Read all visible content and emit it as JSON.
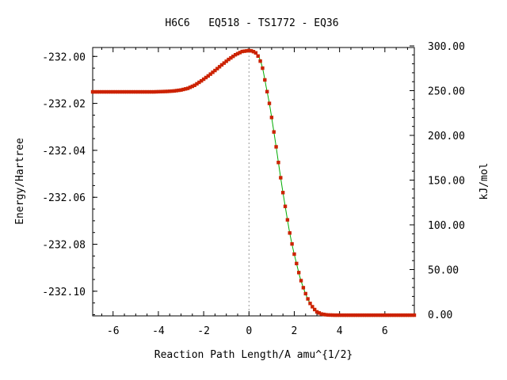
{
  "chart_data": {
    "type": "line",
    "title": "H6C6   EQ518 - TS1772 - EQ36",
    "xlabel": "Reaction Path Length/A amu^{1/2}",
    "ylabel": "Energy/Hartree",
    "y2label": "kJ/mol",
    "xlim": [
      -6.9,
      7.3
    ],
    "ylim": [
      -232.1105,
      -231.9962
    ],
    "y2lim": [
      0,
      300
    ],
    "xticks": [
      -6,
      -4,
      -2,
      0,
      2,
      4,
      6
    ],
    "xtick_labels": [
      "-6",
      "-4",
      "-2",
      "0",
      "2",
      "4",
      "6"
    ],
    "yticks": [
      -232.0,
      -232.02,
      -232.04,
      -232.06,
      -232.08,
      -232.1
    ],
    "ytick_labels": [
      "-232.00",
      "-232.02",
      "-232.04",
      "-232.06",
      "-232.08",
      "-232.10"
    ],
    "y2ticks": [
      300,
      250,
      200,
      150,
      100,
      50,
      0
    ],
    "y2tick_labels": [
      "300.00",
      "250.00",
      "200.00",
      "150.00",
      "100.00",
      "50.00",
      "0.00"
    ],
    "ts_marker_x": 0,
    "grid": false,
    "series": [
      {
        "line_color": "#00aa00",
        "marker_color": "#cc2200",
        "marker": "square",
        "points": [
          [
            -6.9,
            -232.0151
          ],
          [
            -6.6,
            -232.0151
          ],
          [
            -6.3,
            -232.0151
          ],
          [
            -6.0,
            -232.0151
          ],
          [
            -5.7,
            -232.0151
          ],
          [
            -5.4,
            -232.0151
          ],
          [
            -5.1,
            -232.0151
          ],
          [
            -4.8,
            -232.0151
          ],
          [
            -4.5,
            -232.0151
          ],
          [
            -4.2,
            -232.0151
          ],
          [
            -3.9,
            -232.015
          ],
          [
            -3.6,
            -232.0149
          ],
          [
            -3.3,
            -232.0147
          ],
          [
            -3.0,
            -232.0143
          ],
          [
            -2.7,
            -232.0136
          ],
          [
            -2.4,
            -232.0123
          ],
          [
            -2.1,
            -232.0104
          ],
          [
            -1.8,
            -232.0083
          ],
          [
            -1.5,
            -232.006
          ],
          [
            -1.2,
            -232.0036
          ],
          [
            -0.9,
            -232.0013
          ],
          [
            -0.6,
            -231.9993
          ],
          [
            -0.3,
            -231.9979
          ],
          [
            0.0,
            -231.9975
          ],
          [
            0.15,
            -231.9977
          ],
          [
            0.3,
            -231.9985
          ],
          [
            0.45,
            -232.0005
          ],
          [
            0.6,
            -232.005
          ],
          [
            0.75,
            -232.0125
          ],
          [
            0.9,
            -232.02
          ],
          [
            1.05,
            -232.029
          ],
          [
            1.2,
            -232.0385
          ],
          [
            1.35,
            -232.0485
          ],
          [
            1.5,
            -232.058
          ],
          [
            1.65,
            -232.0668
          ],
          [
            1.8,
            -232.0752
          ],
          [
            1.95,
            -232.0822
          ],
          [
            2.1,
            -232.0882
          ],
          [
            2.25,
            -232.094
          ],
          [
            2.4,
            -232.0985
          ],
          [
            2.55,
            -232.1023
          ],
          [
            2.7,
            -232.1052
          ],
          [
            2.85,
            -232.1073
          ],
          [
            3.0,
            -232.1088
          ],
          [
            3.2,
            -232.1097
          ],
          [
            3.45,
            -232.1101
          ],
          [
            3.8,
            -232.1102
          ],
          [
            4.2,
            -232.1102
          ],
          [
            4.7,
            -232.1102
          ],
          [
            5.2,
            -232.1102
          ],
          [
            5.7,
            -232.1102
          ],
          [
            6.2,
            -232.1102
          ],
          [
            6.7,
            -232.1102
          ],
          [
            7.3,
            -232.1102
          ]
        ]
      }
    ]
  }
}
